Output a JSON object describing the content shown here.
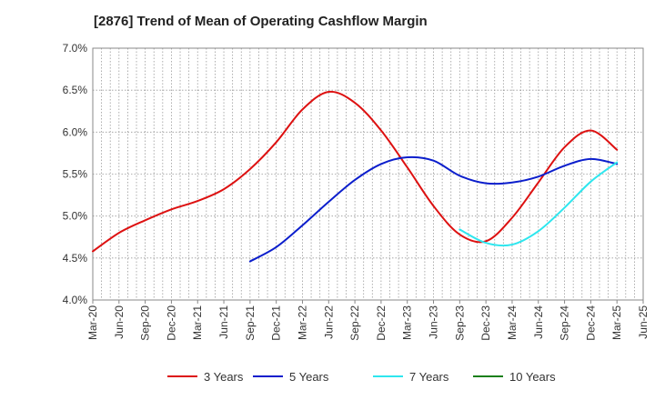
{
  "title": "[2876]  Trend of Mean of Operating Cashflow Margin",
  "colors": {
    "3 Years": "#dd1111",
    "5 Years": "#0b1ecc",
    "7 Years": "#2ee6ee",
    "10 Years": "#1a7f1a"
  },
  "chart_data": {
    "type": "line",
    "title": "[2876]  Trend of Mean of Operating Cashflow Margin",
    "xlabel": "",
    "ylabel": "",
    "x": [
      "Mar-20",
      "Jun-20",
      "Sep-20",
      "Dec-20",
      "Mar-21",
      "Jun-21",
      "Sep-21",
      "Dec-21",
      "Mar-22",
      "Jun-22",
      "Sep-22",
      "Dec-22",
      "Mar-23",
      "Jun-23",
      "Sep-23",
      "Dec-23",
      "Mar-24",
      "Jun-24",
      "Sep-24",
      "Dec-24",
      "Mar-25",
      "Jun-25"
    ],
    "ytick_labels": [
      "4.0%",
      "4.5%",
      "5.0%",
      "5.5%",
      "6.0%",
      "6.5%",
      "7.0%"
    ],
    "ylim": [
      4.0,
      7.0
    ],
    "grid": true,
    "legend_position": "bottom",
    "series": [
      {
        "name": "3 Years",
        "values": [
          4.58,
          4.8,
          4.95,
          5.08,
          5.18,
          5.32,
          5.56,
          5.88,
          6.27,
          6.48,
          6.35,
          6.02,
          5.58,
          5.12,
          4.78,
          4.7,
          4.98,
          5.4,
          5.82,
          6.02,
          5.79,
          null
        ]
      },
      {
        "name": "5 Years",
        "values": [
          null,
          null,
          null,
          null,
          null,
          null,
          4.46,
          4.63,
          4.89,
          5.17,
          5.43,
          5.62,
          5.7,
          5.66,
          5.48,
          5.39,
          5.4,
          5.47,
          5.6,
          5.68,
          5.62,
          null
        ]
      },
      {
        "name": "7 Years",
        "values": [
          null,
          null,
          null,
          null,
          null,
          null,
          null,
          null,
          null,
          null,
          null,
          null,
          null,
          null,
          4.84,
          4.68,
          4.66,
          4.82,
          5.1,
          5.41,
          5.64,
          null
        ]
      },
      {
        "name": "10 Years",
        "values": [
          null,
          null,
          null,
          null,
          null,
          null,
          null,
          null,
          null,
          null,
          null,
          null,
          null,
          null,
          null,
          null,
          null,
          null,
          null,
          null,
          null,
          null
        ]
      }
    ]
  }
}
